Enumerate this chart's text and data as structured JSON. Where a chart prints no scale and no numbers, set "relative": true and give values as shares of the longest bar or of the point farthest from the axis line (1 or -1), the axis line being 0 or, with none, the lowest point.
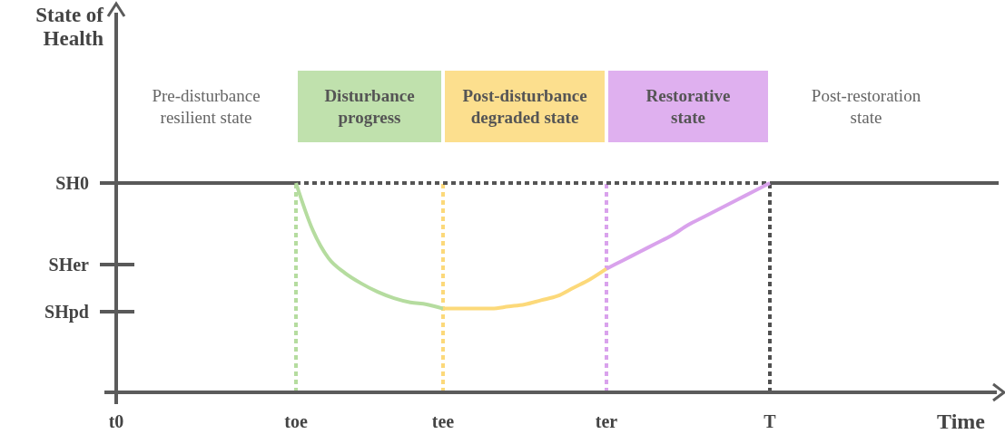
{
  "chart_data": {
    "type": "line",
    "relative": true,
    "xlabel": "Time",
    "categories": [
      "t0",
      null,
      null,
      null,
      null,
      null,
      null,
      null,
      null,
      null,
      null,
      "toe",
      null,
      null,
      null,
      null,
      null,
      null,
      null,
      null,
      "tee",
      null,
      null,
      null,
      null,
      null,
      null,
      null,
      null,
      null,
      "ter",
      null,
      null,
      null,
      null,
      null,
      null,
      null,
      null,
      null,
      "T",
      null,
      null,
      null,
      null,
      null,
      null,
      null,
      null,
      null,
      null,
      null,
      null,
      null,
      null
    ],
    "series": [
      {
        "color": "#595959",
        "values": [
          1,
          1,
          1,
          1,
          1,
          1,
          1,
          1,
          1,
          1,
          1,
          1,
          null,
          null,
          null,
          null,
          null,
          null,
          null,
          null,
          null,
          null,
          null,
          null,
          null,
          null,
          null,
          null,
          null,
          null,
          null,
          null,
          null,
          null,
          null,
          null,
          null,
          null,
          null,
          null,
          1,
          1,
          1,
          1,
          1,
          1,
          1,
          1,
          1,
          1,
          1,
          1,
          1,
          1,
          1
        ]
      },
      {
        "color": "#555555",
        "line_style": "dotted",
        "values": [
          null,
          null,
          null,
          null,
          null,
          null,
          null,
          null,
          null,
          null,
          null,
          1,
          1,
          1,
          1,
          1,
          1,
          1,
          1,
          1,
          1,
          1,
          1,
          1,
          1,
          1,
          1,
          1,
          1,
          1,
          1,
          1,
          1,
          1,
          1,
          1,
          1,
          1,
          1,
          1,
          1,
          null,
          null,
          null,
          null,
          null,
          null,
          null,
          null,
          null,
          null,
          null,
          null,
          null,
          null
        ]
      },
      {
        "color": "#b5dc9f",
        "values": [
          null,
          null,
          null,
          null,
          null,
          null,
          null,
          null,
          null,
          null,
          null,
          1.0,
          0.78,
          0.64,
          0.57,
          0.52,
          0.48,
          0.45,
          0.43,
          0.42,
          0.4,
          null,
          null,
          null,
          null,
          null,
          null,
          null,
          null,
          null,
          null,
          null,
          null,
          null,
          null,
          null,
          null,
          null,
          null,
          null,
          null,
          null,
          null,
          null,
          null,
          null,
          null,
          null,
          null,
          null,
          null,
          null,
          null,
          null,
          null
        ]
      },
      {
        "color": "#fcd97a",
        "values": [
          null,
          null,
          null,
          null,
          null,
          null,
          null,
          null,
          null,
          null,
          null,
          null,
          null,
          null,
          null,
          null,
          null,
          null,
          null,
          null,
          0.4,
          0.4,
          0.4,
          0.4,
          0.41,
          0.42,
          0.44,
          0.46,
          0.5,
          0.54,
          0.59,
          null,
          null,
          null,
          null,
          null,
          null,
          null,
          null,
          null,
          null,
          null,
          null,
          null,
          null,
          null,
          null,
          null,
          null,
          null,
          null,
          null,
          null,
          null,
          null
        ]
      },
      {
        "color": "#d9a2ec",
        "values": [
          null,
          null,
          null,
          null,
          null,
          null,
          null,
          null,
          null,
          null,
          null,
          null,
          null,
          null,
          null,
          null,
          null,
          null,
          null,
          null,
          null,
          null,
          null,
          null,
          null,
          null,
          null,
          null,
          null,
          null,
          0.59,
          0.63,
          0.67,
          0.71,
          0.75,
          0.8,
          0.84,
          0.88,
          0.92,
          0.96,
          1.0,
          null,
          null,
          null,
          null,
          null,
          null,
          null,
          null,
          null,
          null,
          null,
          null,
          null,
          null
        ]
      }
    ],
    "ref_lines": [
      {
        "axis": "y",
        "value": 1,
        "label": "SH0",
        "color": "#595959"
      },
      {
        "axis": "y",
        "value": 0.61,
        "label": "SHer",
        "color": "#595959"
      },
      {
        "axis": "y",
        "value": 0.385,
        "label": "SHpd",
        "color": "#595959"
      },
      {
        "axis": "x",
        "value": "toe",
        "color": "#b5dc9f",
        "line_style": "dotted"
      },
      {
        "axis": "x",
        "value": "tee",
        "color": "#fcd97a",
        "line_style": "dotted"
      },
      {
        "axis": "x",
        "value": "ter",
        "color": "#d9a2ec",
        "line_style": "dotted"
      },
      {
        "axis": "x",
        "value": "T",
        "color": "#505050",
        "line_style": "dotted"
      }
    ],
    "annotations": [
      "Pre-disturbance resilient state",
      "Disturbance progress",
      "Post-disturbance degraded state",
      "Restorative state",
      "Post-restoration state",
      "State of Health"
    ]
  }
}
